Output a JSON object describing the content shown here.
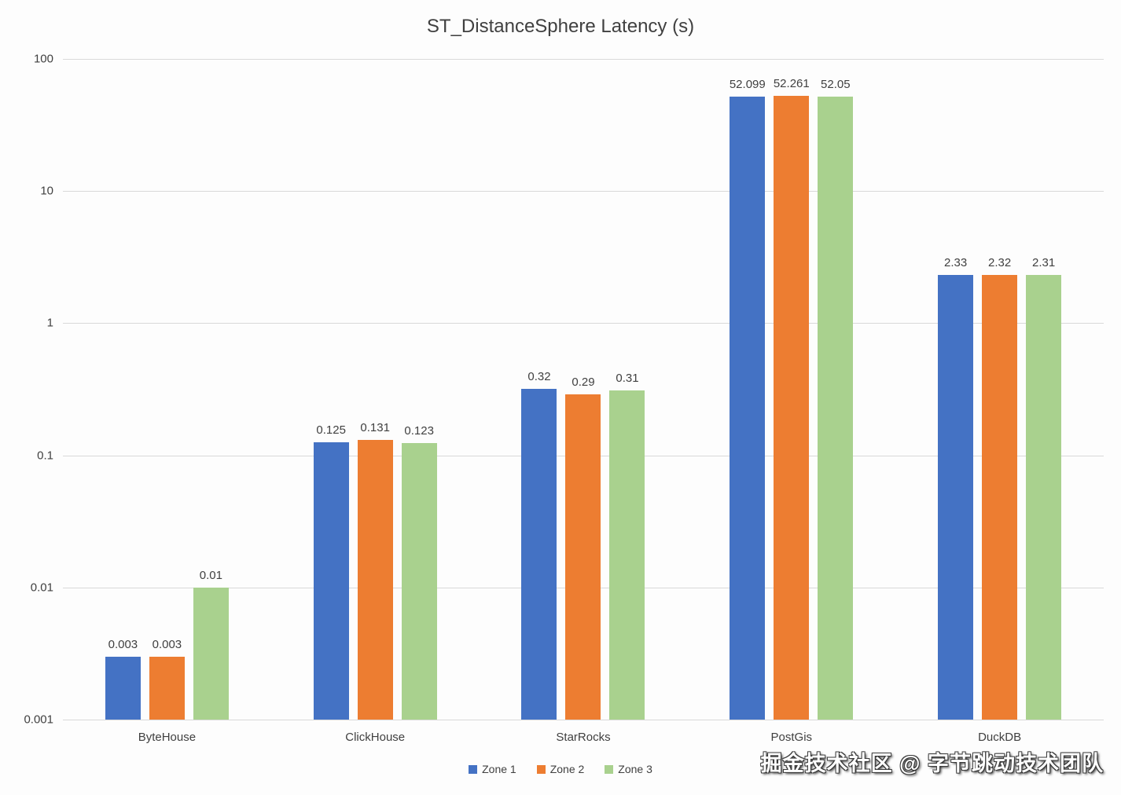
{
  "watermark": "掘金技术社区 @ 字节跳动技术团队",
  "chart_data": {
    "type": "bar",
    "title": "ST_DistanceSphere Latency (s)",
    "xlabel": "",
    "ylabel": "",
    "y_scale": "log",
    "ylim": [
      0.001,
      100
    ],
    "y_ticks": [
      100,
      10,
      1,
      0.1,
      0.01,
      0.001
    ],
    "grid": true,
    "legend_position": "bottom",
    "categories": [
      "ByteHouse",
      "ClickHouse",
      "StarRocks",
      "PostGis",
      "DuckDB"
    ],
    "series": [
      {
        "name": "Zone 1",
        "color": "#4472C4",
        "values": [
          0.003,
          0.125,
          0.32,
          52.099,
          2.33
        ]
      },
      {
        "name": "Zone 2",
        "color": "#ED7D31",
        "values": [
          0.003,
          0.131,
          0.29,
          52.261,
          2.32
        ]
      },
      {
        "name": "Zone 3",
        "color": "#A9D18E",
        "values": [
          0.01,
          0.123,
          0.31,
          52.05,
          2.31
        ]
      }
    ]
  }
}
